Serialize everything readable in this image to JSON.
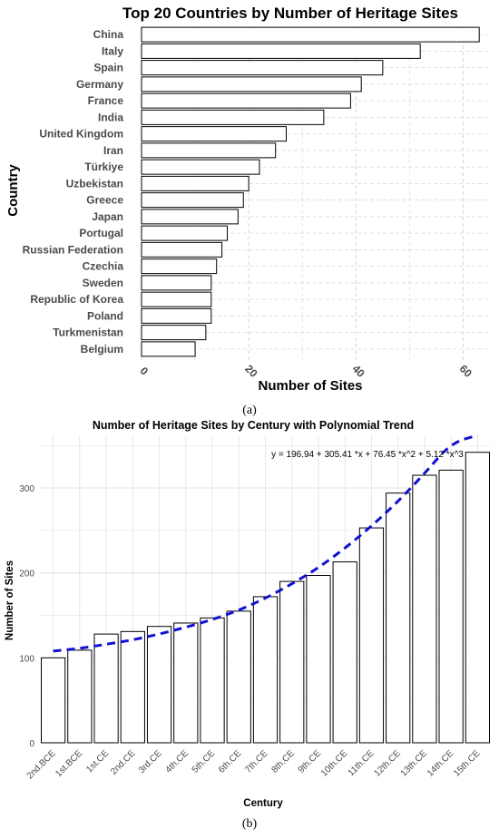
{
  "chart_data": [
    {
      "type": "bar",
      "orientation": "horizontal",
      "title": "Top 20 Countries by Number of Heritage Sites",
      "xlabel": "Number of Sites",
      "ylabel": "Country",
      "categories": [
        "China",
        "Italy",
        "Spain",
        "Germany",
        "France",
        "India",
        "United Kingdom",
        "Iran",
        "Türkiye",
        "Uzbekistan",
        "Greece",
        "Japan",
        "Portugal",
        "Russian Federation",
        "Czechia",
        "Sweden",
        "Republic of Korea",
        "Poland",
        "Turkmenistan",
        "Belgium"
      ],
      "values": [
        63,
        52,
        45,
        41,
        39,
        34,
        27,
        25,
        22,
        20,
        19,
        18,
        16,
        15,
        14,
        13,
        13,
        13,
        12,
        10
      ],
      "xticks": [
        0,
        20,
        40,
        60
      ],
      "xlim": [
        0,
        65
      ],
      "grid": true,
      "panel_label": "(a)",
      "colors": {
        "bar_fill": "#ffffff",
        "bar_stroke": "#000000",
        "grid": "#d6d6d6"
      }
    },
    {
      "type": "bar",
      "title": "Number of Heritage Sites by Century with Polynomial Trend",
      "xlabel": "Century",
      "ylabel": "Number of Sites",
      "categories": [
        "2nd.BCE",
        "1st.BCE",
        "1st.CE",
        "2nd.CE",
        "3rd.CE",
        "4th.CE",
        "5th.CE",
        "6th.CE",
        "7th.CE",
        "8th.CE",
        "9th.CE",
        "10th.CE",
        "11th.CE",
        "12th.CE",
        "13th.CE",
        "14th.CE",
        "15th.CE"
      ],
      "values": [
        100,
        109,
        128,
        131,
        137,
        141,
        147,
        155,
        172,
        190,
        197,
        213,
        253,
        294,
        315,
        321,
        342
      ],
      "yticks": [
        0,
        100,
        200,
        300
      ],
      "ylim": [
        0,
        362
      ],
      "grid": true,
      "annotation": "y = 196.94 + 305.41 *x + 76.45 *x^2 + 5.12 *x^3",
      "trend": {
        "style": "dashed",
        "values": [
          108,
          111,
          116,
          121,
          128,
          136,
          145,
          156,
          170,
          187,
          206,
          229,
          255,
          284,
          317,
          353,
          392
        ]
      },
      "panel_label": "(b)",
      "colors": {
        "bar_fill": "#ffffff",
        "bar_stroke": "#000000",
        "trend": "#1010d0",
        "grid": "#e2e2e2"
      }
    }
  ]
}
